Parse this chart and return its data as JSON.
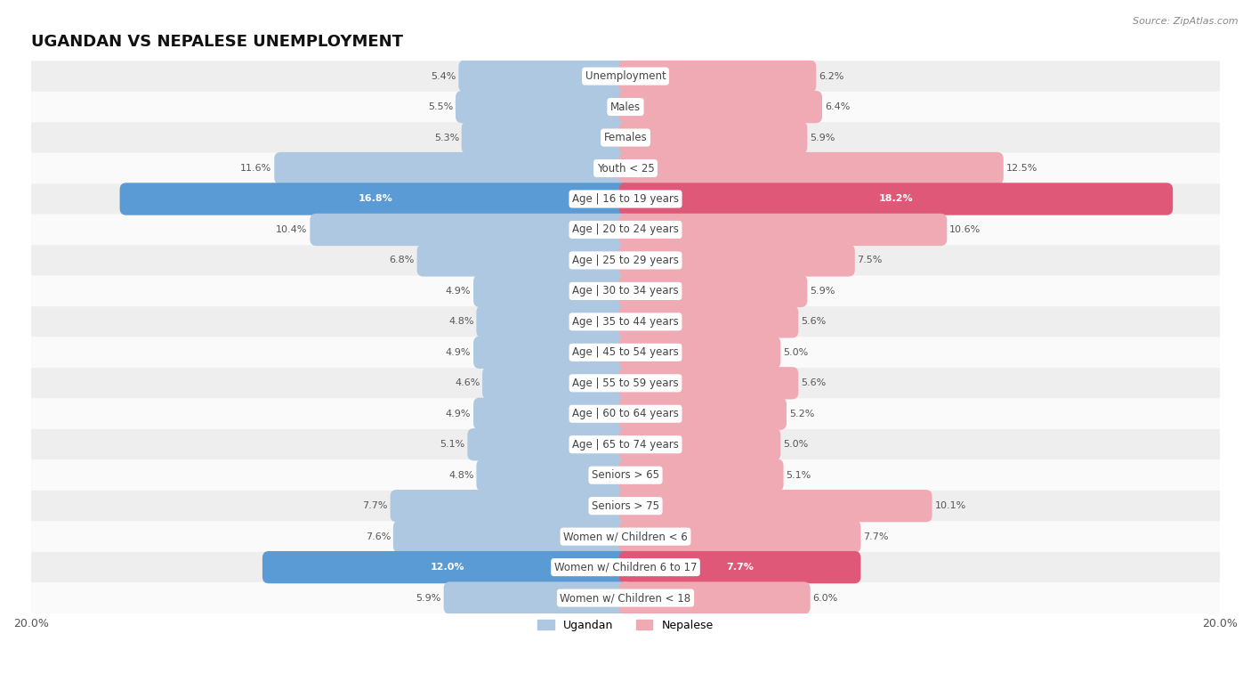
{
  "title": "UGANDAN VS NEPALESE UNEMPLOYMENT",
  "source": "Source: ZipAtlas.com",
  "categories": [
    "Unemployment",
    "Males",
    "Females",
    "Youth < 25",
    "Age | 16 to 19 years",
    "Age | 20 to 24 years",
    "Age | 25 to 29 years",
    "Age | 30 to 34 years",
    "Age | 35 to 44 years",
    "Age | 45 to 54 years",
    "Age | 55 to 59 years",
    "Age | 60 to 64 years",
    "Age | 65 to 74 years",
    "Seniors > 65",
    "Seniors > 75",
    "Women w/ Children < 6",
    "Women w/ Children 6 to 17",
    "Women w/ Children < 18"
  ],
  "ugandan": [
    5.4,
    5.5,
    5.3,
    11.6,
    16.8,
    10.4,
    6.8,
    4.9,
    4.8,
    4.9,
    4.6,
    4.9,
    5.1,
    4.8,
    7.7,
    7.6,
    12.0,
    5.9
  ],
  "nepalese": [
    6.2,
    6.4,
    5.9,
    12.5,
    18.2,
    10.6,
    7.5,
    5.9,
    5.6,
    5.0,
    5.6,
    5.2,
    5.0,
    5.1,
    10.1,
    7.7,
    7.7,
    6.0
  ],
  "ugandan_color_normal": "#adc8e0",
  "nepalese_color_normal": "#f0aab4",
  "ugandan_color_highlight": "#5b9bd5",
  "nepalese_color_highlight": "#e05878",
  "highlight_indices": [
    4,
    16
  ],
  "max_val": 20.0,
  "bar_height": 0.62,
  "row_bg_color_odd": "#eeeeee",
  "row_bg_color_even": "#fafafa",
  "row_line_color": "#cccccc",
  "legend_ugandan": "Ugandan",
  "legend_nepalese": "Nepalese",
  "title_fontsize": 13,
  "label_fontsize": 8.5,
  "value_fontsize": 8.0,
  "axis_fontsize": 9
}
